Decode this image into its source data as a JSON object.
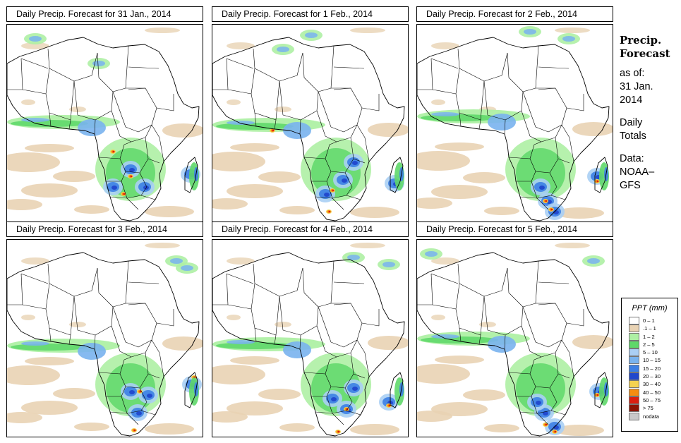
{
  "panels": [
    {
      "title": "Daily Precip. Forecast for  31 Jan., 2014"
    },
    {
      "title": "Daily Precip. Forecast for  1 Feb., 2014"
    },
    {
      "title": "Daily Precip. Forecast for  2 Feb., 2014"
    },
    {
      "title": "Daily Precip. Forecast for  3 Feb., 2014"
    },
    {
      "title": "Daily Precip. Forecast for  4 Feb., 2014"
    },
    {
      "title": "Daily Precip. Forecast for  5 Feb., 2014"
    }
  ],
  "side": {
    "line1": "Precip.",
    "line2": "Forecast",
    "as_of": "as of:",
    "date1": "31 Jan.",
    "date2": "2014",
    "daily1": "Daily",
    "daily2": "Totals",
    "data1": "Data:",
    "data2": "NOAA–",
    "data3": "GFS"
  },
  "legend": {
    "title": "PPT (mm)",
    "items": [
      {
        "label": "0 – 1",
        "color": "#ffffff"
      },
      {
        "label": ".1 – 1",
        "color": "#e9d3b4"
      },
      {
        "label": "1 – 2",
        "color": "#aef0a4"
      },
      {
        "label": "2 – 5",
        "color": "#5fd86a"
      },
      {
        "label": "5 – 10",
        "color": "#aacff4"
      },
      {
        "label": "10 – 15",
        "color": "#79b3ee"
      },
      {
        "label": "15 – 20",
        "color": "#3c7fe4"
      },
      {
        "label": "20 – 30",
        "color": "#2147cc"
      },
      {
        "label": "30 – 40",
        "color": "#f4d250"
      },
      {
        "label": "40 – 50",
        "color": "#f58d12"
      },
      {
        "label": "50 – 75",
        "color": "#dc1f10"
      },
      {
        "label": "> 75",
        "color": "#8c1404"
      },
      {
        "label": "nodata",
        "color": "#c8c8c8"
      }
    ]
  }
}
